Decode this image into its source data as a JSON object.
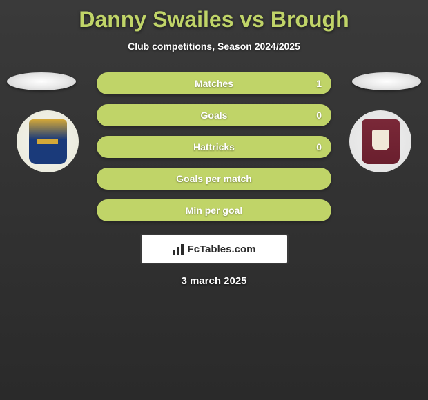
{
  "title": "Danny Swailes vs Brough",
  "subtitle": "Club competitions, Season 2024/2025",
  "stats": [
    {
      "label": "Matches",
      "value_right": "1"
    },
    {
      "label": "Goals",
      "value_right": "0"
    },
    {
      "label": "Hattricks",
      "value_right": "0"
    },
    {
      "label": "Goals per match",
      "value_right": ""
    },
    {
      "label": "Min per goal",
      "value_right": ""
    }
  ],
  "branding": "FcTables.com",
  "date": "3 march 2025",
  "colors": {
    "accent": "#c0d468",
    "background_top": "#3a3a3a",
    "background_bottom": "#2a2a2a",
    "text_white": "#ffffff",
    "box_bg": "#ffffff",
    "box_text": "#2a2a2a"
  }
}
